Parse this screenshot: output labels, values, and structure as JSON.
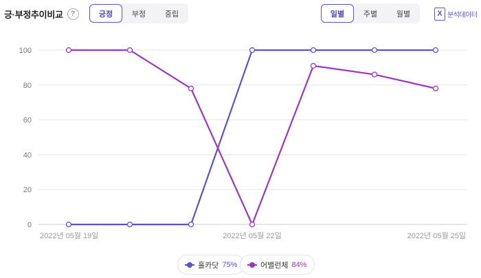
{
  "header": {
    "title": "긍·부정추이비교",
    "help_glyph": "?",
    "help_icon": "question-circle-icon",
    "sentiment_tabs": [
      {
        "label": "긍정",
        "active": true
      },
      {
        "label": "부정",
        "active": false
      },
      {
        "label": "중립",
        "active": false
      }
    ],
    "period_tabs": [
      {
        "label": "일별",
        "active": true
      },
      {
        "label": "주별",
        "active": false
      },
      {
        "label": "월별",
        "active": false
      }
    ],
    "export_label": "분석데이터",
    "export_glyph": "X",
    "export_icon": "excel-file-icon"
  },
  "chart_data": {
    "type": "line",
    "x": [
      "2022-05-19",
      "2022-05-20",
      "2022-05-21",
      "2022-05-22",
      "2022-05-23",
      "2022-05-24",
      "2022-05-25"
    ],
    "x_tick_labels": [
      "2022년 05월 19일",
      "2022년 05월 22일",
      "2022년 05월 25일"
    ],
    "ylim": [
      0,
      100
    ],
    "y_ticks": [
      0,
      20,
      40,
      60,
      80,
      100
    ],
    "grid": true,
    "legend_position": "bottom-center",
    "series": [
      {
        "name": "홀카닷",
        "legend_value": "75%",
        "color": "#5b4fd6",
        "values": [
          0,
          0,
          0,
          100,
          100,
          100,
          100
        ]
      },
      {
        "name": "어밸런체",
        "legend_value": "84%",
        "color": "#9b35c4",
        "values": [
          100,
          100,
          78,
          0,
          91,
          86,
          78
        ]
      }
    ]
  }
}
